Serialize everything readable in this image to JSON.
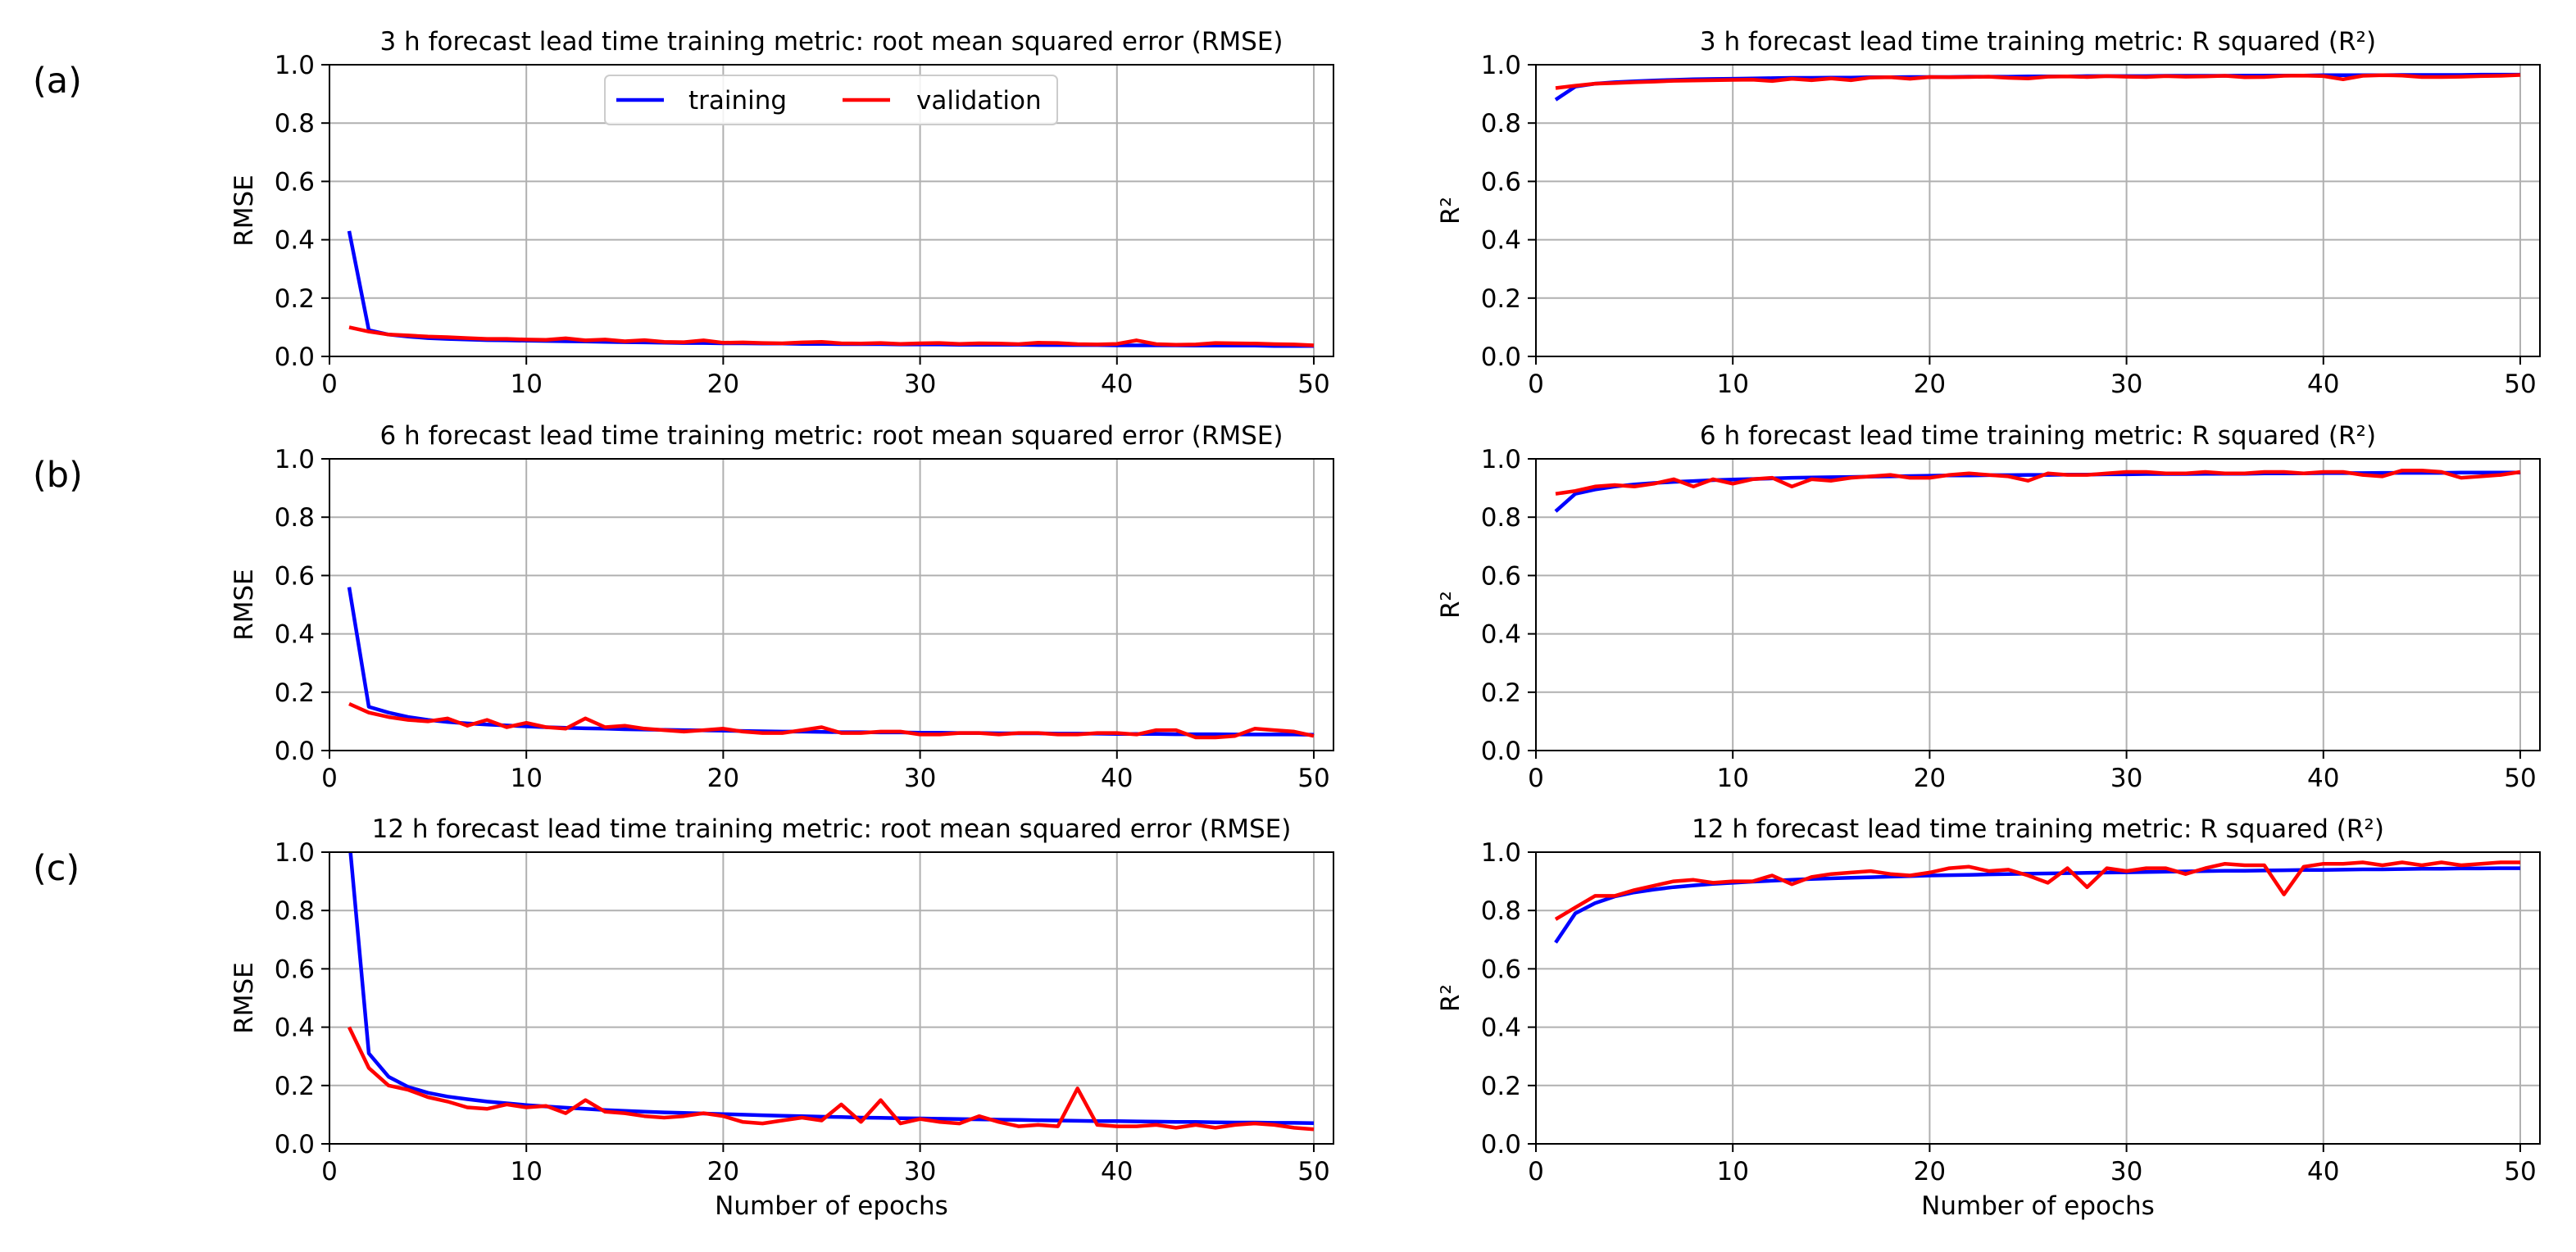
{
  "panel_labels": [
    "(a)",
    "(b)",
    "(c)"
  ],
  "legend": {
    "training": "training",
    "validation": "validation"
  },
  "colors": {
    "training": "#0000ff",
    "validation": "#ff0000",
    "grid": "#b0b0b0"
  },
  "chart_data": [
    {
      "type": "line",
      "title": "3 h forecast lead time training metric: root mean squared error (RMSE)",
      "xlabel": "",
      "ylabel": "RMSE",
      "xlim": [
        0,
        51
      ],
      "ylim": [
        0,
        1.0
      ],
      "xticks": [
        "0",
        "10",
        "20",
        "30",
        "40",
        "50"
      ],
      "yticks": [
        "0.0",
        "0.2",
        "0.4",
        "0.6",
        "0.8",
        "1.0"
      ],
      "grid": true,
      "legend_position": "upper-center",
      "series": [
        {
          "name": "training",
          "x_start": 1,
          "x_step": 1,
          "values": [
            0.43,
            0.09,
            0.075,
            0.068,
            0.063,
            0.06,
            0.058,
            0.056,
            0.055,
            0.054,
            0.053,
            0.052,
            0.051,
            0.05,
            0.049,
            0.048,
            0.047,
            0.046,
            0.046,
            0.045,
            0.045,
            0.044,
            0.044,
            0.043,
            0.043,
            0.042,
            0.042,
            0.042,
            0.041,
            0.041,
            0.041,
            0.04,
            0.04,
            0.04,
            0.04,
            0.039,
            0.039,
            0.039,
            0.039,
            0.038,
            0.038,
            0.038,
            0.038,
            0.037,
            0.037,
            0.037,
            0.037,
            0.036,
            0.036,
            0.036
          ]
        },
        {
          "name": "validation",
          "x_start": 1,
          "x_step": 1,
          "values": [
            0.1,
            0.085,
            0.075,
            0.072,
            0.068,
            0.066,
            0.063,
            0.06,
            0.06,
            0.058,
            0.057,
            0.062,
            0.055,
            0.058,
            0.052,
            0.056,
            0.05,
            0.049,
            0.055,
            0.047,
            0.048,
            0.046,
            0.045,
            0.048,
            0.05,
            0.045,
            0.044,
            0.046,
            0.043,
            0.045,
            0.046,
            0.043,
            0.045,
            0.044,
            0.042,
            0.047,
            0.046,
            0.042,
            0.041,
            0.043,
            0.055,
            0.042,
            0.04,
            0.041,
            0.046,
            0.045,
            0.044,
            0.042,
            0.041,
            0.038
          ]
        }
      ]
    },
    {
      "type": "line",
      "title": "3 h forecast lead time training metric: R squared (R²)",
      "xlabel": "",
      "ylabel": "R²",
      "xlim": [
        0,
        51
      ],
      "ylim": [
        0,
        1.0
      ],
      "xticks": [
        "0",
        "10",
        "20",
        "30",
        "40",
        "50"
      ],
      "yticks": [
        "0.0",
        "0.2",
        "0.4",
        "0.6",
        "0.8",
        "1.0"
      ],
      "grid": true,
      "series": [
        {
          "name": "training",
          "x_start": 1,
          "x_step": 1,
          "values": [
            0.88,
            0.925,
            0.935,
            0.94,
            0.943,
            0.946,
            0.948,
            0.95,
            0.951,
            0.952,
            0.953,
            0.954,
            0.955,
            0.955,
            0.956,
            0.956,
            0.957,
            0.957,
            0.958,
            0.958,
            0.958,
            0.959,
            0.959,
            0.959,
            0.96,
            0.96,
            0.96,
            0.961,
            0.961,
            0.961,
            0.961,
            0.962,
            0.962,
            0.962,
            0.962,
            0.963,
            0.963,
            0.963,
            0.963,
            0.964,
            0.964,
            0.964,
            0.964,
            0.965,
            0.965,
            0.965,
            0.965,
            0.966,
            0.966,
            0.966
          ]
        },
        {
          "name": "validation",
          "x_start": 1,
          "x_step": 1,
          "values": [
            0.92,
            0.928,
            0.935,
            0.937,
            0.94,
            0.942,
            0.945,
            0.946,
            0.947,
            0.948,
            0.949,
            0.944,
            0.952,
            0.947,
            0.953,
            0.947,
            0.956,
            0.957,
            0.952,
            0.958,
            0.957,
            0.958,
            0.959,
            0.955,
            0.953,
            0.959,
            0.96,
            0.958,
            0.961,
            0.959,
            0.958,
            0.961,
            0.959,
            0.96,
            0.962,
            0.957,
            0.958,
            0.962,
            0.963,
            0.961,
            0.95,
            0.962,
            0.964,
            0.963,
            0.958,
            0.958,
            0.959,
            0.961,
            0.962,
            0.965
          ]
        }
      ]
    },
    {
      "type": "line",
      "title": "6 h forecast lead time training metric: root mean squared error (RMSE)",
      "xlabel": "",
      "ylabel": "RMSE",
      "xlim": [
        0,
        51
      ],
      "ylim": [
        0,
        1.0
      ],
      "xticks": [
        "0",
        "10",
        "20",
        "30",
        "40",
        "50"
      ],
      "yticks": [
        "0.0",
        "0.2",
        "0.4",
        "0.6",
        "0.8",
        "1.0"
      ],
      "grid": true,
      "series": [
        {
          "name": "training",
          "x_start": 1,
          "x_step": 1,
          "values": [
            0.56,
            0.15,
            0.13,
            0.115,
            0.105,
            0.098,
            0.093,
            0.089,
            0.086,
            0.083,
            0.08,
            0.078,
            0.076,
            0.075,
            0.073,
            0.072,
            0.071,
            0.07,
            0.069,
            0.068,
            0.067,
            0.066,
            0.065,
            0.065,
            0.064,
            0.063,
            0.063,
            0.062,
            0.062,
            0.061,
            0.061,
            0.06,
            0.06,
            0.059,
            0.059,
            0.059,
            0.058,
            0.058,
            0.058,
            0.057,
            0.057,
            0.057,
            0.056,
            0.056,
            0.056,
            0.055,
            0.055,
            0.055,
            0.055,
            0.054
          ]
        },
        {
          "name": "validation",
          "x_start": 1,
          "x_step": 1,
          "values": [
            0.16,
            0.13,
            0.115,
            0.105,
            0.1,
            0.11,
            0.085,
            0.105,
            0.08,
            0.095,
            0.08,
            0.075,
            0.11,
            0.08,
            0.085,
            0.075,
            0.07,
            0.065,
            0.07,
            0.075,
            0.065,
            0.06,
            0.06,
            0.07,
            0.08,
            0.06,
            0.06,
            0.065,
            0.065,
            0.055,
            0.055,
            0.06,
            0.06,
            0.055,
            0.06,
            0.06,
            0.055,
            0.055,
            0.06,
            0.06,
            0.055,
            0.07,
            0.07,
            0.045,
            0.045,
            0.05,
            0.075,
            0.07,
            0.065,
            0.05
          ]
        }
      ]
    },
    {
      "type": "line",
      "title": "6 h forecast lead time training metric: R squared (R²)",
      "xlabel": "",
      "ylabel": "R²",
      "xlim": [
        0,
        51
      ],
      "ylim": [
        0,
        1.0
      ],
      "xticks": [
        "0",
        "10",
        "20",
        "30",
        "40",
        "50"
      ],
      "yticks": [
        "0.0",
        "0.2",
        "0.4",
        "0.6",
        "0.8",
        "1.0"
      ],
      "grid": true,
      "series": [
        {
          "name": "training",
          "x_start": 1,
          "x_step": 1,
          "values": [
            0.82,
            0.88,
            0.895,
            0.905,
            0.912,
            0.917,
            0.921,
            0.924,
            0.927,
            0.929,
            0.931,
            0.933,
            0.935,
            0.936,
            0.937,
            0.938,
            0.939,
            0.94,
            0.941,
            0.942,
            0.943,
            0.943,
            0.944,
            0.944,
            0.945,
            0.945,
            0.946,
            0.946,
            0.947,
            0.947,
            0.948,
            0.948,
            0.948,
            0.949,
            0.949,
            0.949,
            0.95,
            0.95,
            0.95,
            0.951,
            0.951,
            0.951,
            0.952,
            0.952,
            0.952,
            0.952,
            0.953,
            0.953,
            0.953,
            0.953
          ]
        },
        {
          "name": "validation",
          "x_start": 1,
          "x_step": 1,
          "values": [
            0.88,
            0.89,
            0.905,
            0.91,
            0.905,
            0.915,
            0.93,
            0.905,
            0.93,
            0.915,
            0.93,
            0.935,
            0.905,
            0.93,
            0.925,
            0.935,
            0.94,
            0.945,
            0.935,
            0.935,
            0.945,
            0.95,
            0.945,
            0.94,
            0.925,
            0.95,
            0.945,
            0.945,
            0.95,
            0.955,
            0.955,
            0.95,
            0.95,
            0.955,
            0.95,
            0.95,
            0.955,
            0.955,
            0.95,
            0.955,
            0.955,
            0.945,
            0.94,
            0.96,
            0.96,
            0.955,
            0.935,
            0.94,
            0.945,
            0.955
          ]
        }
      ]
    },
    {
      "type": "line",
      "title": "12 h forecast lead time training metric: root mean squared error (RMSE)",
      "xlabel": "Number of epochs",
      "ylabel": "RMSE",
      "xlim": [
        0,
        51
      ],
      "ylim": [
        0,
        1.0
      ],
      "xticks": [
        "0",
        "10",
        "20",
        "30",
        "40",
        "50"
      ],
      "yticks": [
        "0.0",
        "0.2",
        "0.4",
        "0.6",
        "0.8",
        "1.0"
      ],
      "grid": true,
      "series": [
        {
          "name": "training",
          "x_start": 1,
          "x_step": 1,
          "values": [
            1.05,
            0.31,
            0.23,
            0.195,
            0.175,
            0.162,
            0.153,
            0.145,
            0.139,
            0.133,
            0.128,
            0.124,
            0.12,
            0.116,
            0.113,
            0.11,
            0.108,
            0.106,
            0.104,
            0.102,
            0.1,
            0.098,
            0.096,
            0.095,
            0.093,
            0.092,
            0.09,
            0.089,
            0.088,
            0.087,
            0.086,
            0.085,
            0.084,
            0.083,
            0.082,
            0.081,
            0.08,
            0.079,
            0.078,
            0.078,
            0.077,
            0.076,
            0.075,
            0.075,
            0.074,
            0.073,
            0.073,
            0.072,
            0.072,
            0.071
          ]
        },
        {
          "name": "validation",
          "x_start": 1,
          "x_step": 1,
          "values": [
            0.4,
            0.26,
            0.2,
            0.185,
            0.16,
            0.145,
            0.125,
            0.12,
            0.135,
            0.125,
            0.13,
            0.105,
            0.15,
            0.11,
            0.105,
            0.095,
            0.09,
            0.095,
            0.105,
            0.095,
            0.075,
            0.07,
            0.08,
            0.09,
            0.08,
            0.135,
            0.075,
            0.15,
            0.07,
            0.085,
            0.075,
            0.07,
            0.095,
            0.075,
            0.06,
            0.065,
            0.06,
            0.19,
            0.065,
            0.06,
            0.06,
            0.065,
            0.055,
            0.065,
            0.055,
            0.065,
            0.07,
            0.065,
            0.055,
            0.05
          ]
        }
      ]
    },
    {
      "type": "line",
      "title": "12 h forecast lead time training metric: R squared (R²)",
      "xlabel": "Number of epochs",
      "ylabel": "R²",
      "xlim": [
        0,
        51
      ],
      "ylim": [
        0,
        1.0
      ],
      "xticks": [
        "0",
        "10",
        "20",
        "30",
        "40",
        "50"
      ],
      "yticks": [
        "0.0",
        "0.2",
        "0.4",
        "0.6",
        "0.8",
        "1.0"
      ],
      "grid": true,
      "series": [
        {
          "name": "training",
          "x_start": 1,
          "x_step": 1,
          "values": [
            0.69,
            0.79,
            0.825,
            0.848,
            0.862,
            0.872,
            0.88,
            0.886,
            0.891,
            0.895,
            0.899,
            0.902,
            0.905,
            0.908,
            0.91,
            0.912,
            0.914,
            0.916,
            0.918,
            0.92,
            0.921,
            0.922,
            0.924,
            0.925,
            0.926,
            0.927,
            0.928,
            0.929,
            0.93,
            0.931,
            0.932,
            0.933,
            0.934,
            0.935,
            0.936,
            0.936,
            0.937,
            0.938,
            0.939,
            0.939,
            0.94,
            0.941,
            0.941,
            0.942,
            0.943,
            0.943,
            0.944,
            0.944,
            0.945,
            0.945
          ]
        },
        {
          "name": "validation",
          "x_start": 1,
          "x_step": 1,
          "values": [
            0.77,
            0.81,
            0.85,
            0.85,
            0.87,
            0.885,
            0.9,
            0.905,
            0.895,
            0.9,
            0.9,
            0.92,
            0.89,
            0.915,
            0.925,
            0.93,
            0.935,
            0.925,
            0.92,
            0.93,
            0.945,
            0.95,
            0.935,
            0.94,
            0.92,
            0.895,
            0.945,
            0.88,
            0.945,
            0.935,
            0.945,
            0.945,
            0.925,
            0.945,
            0.96,
            0.955,
            0.955,
            0.855,
            0.95,
            0.96,
            0.96,
            0.965,
            0.955,
            0.965,
            0.955,
            0.965,
            0.955,
            0.96,
            0.965,
            0.965
          ]
        }
      ]
    }
  ]
}
